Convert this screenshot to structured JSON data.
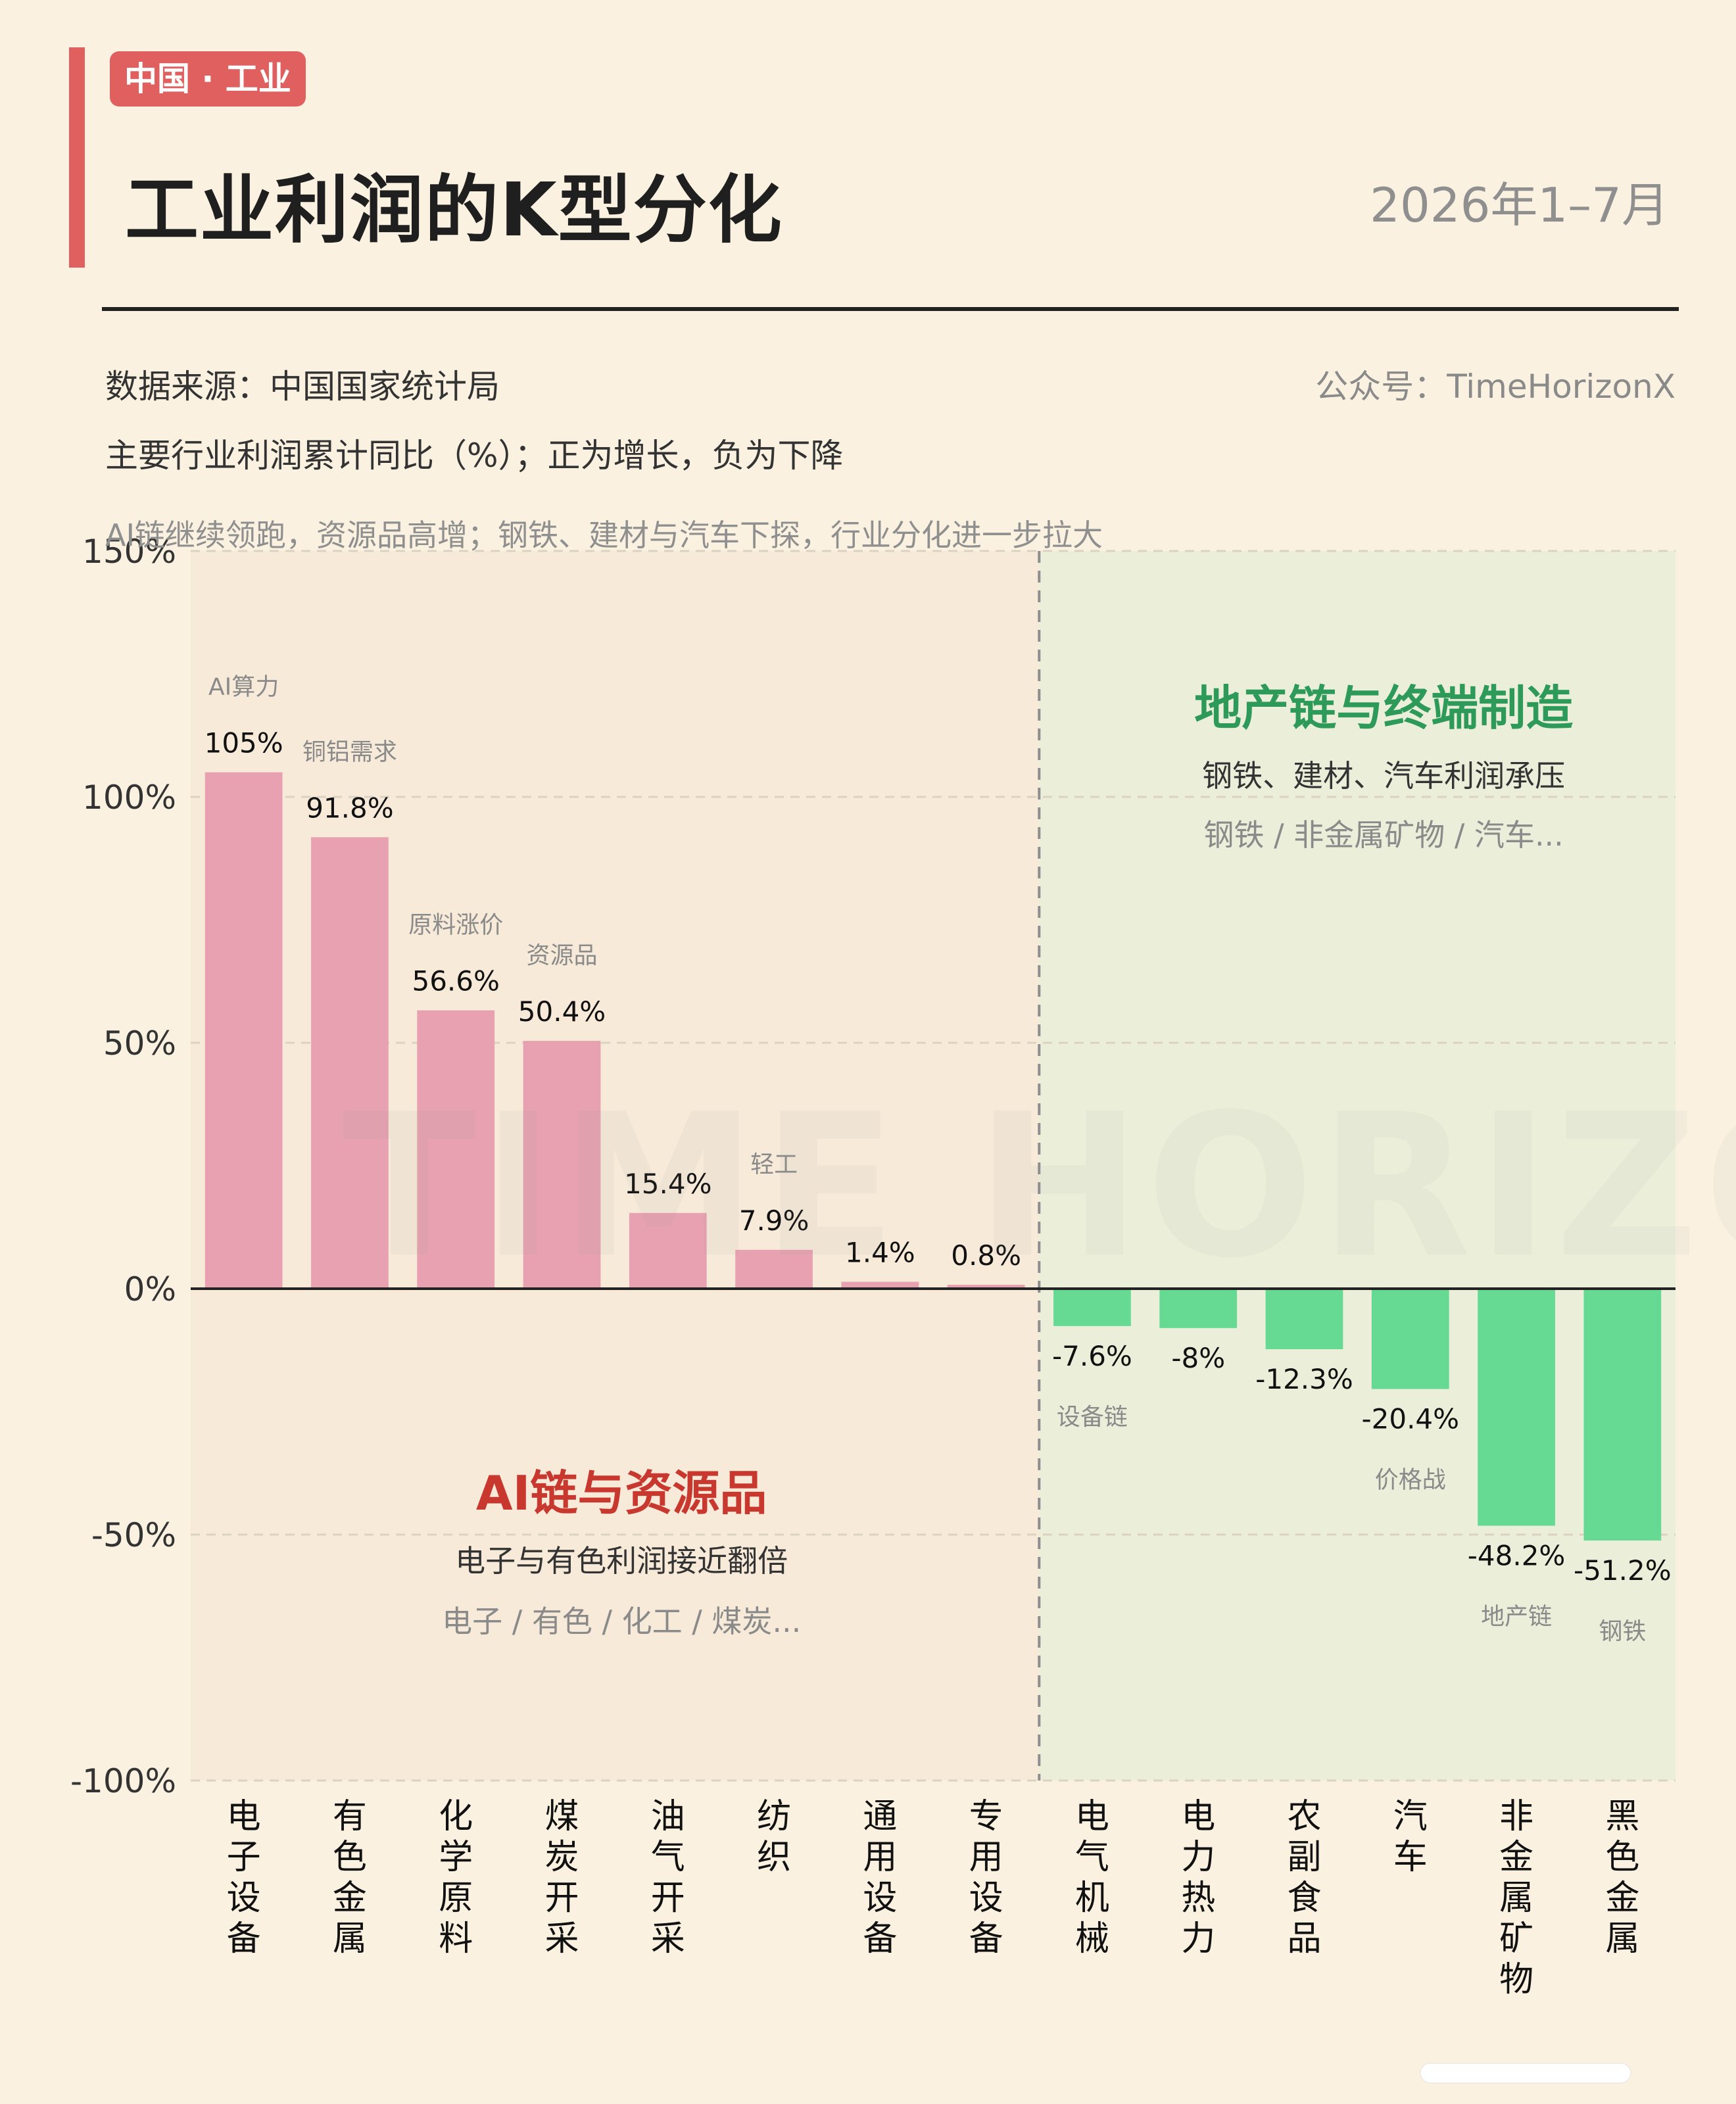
{
  "header": {
    "tag": "中国 · 工业",
    "title": "工业利润的K型分化",
    "date": "2026年1–7月",
    "source": "数据来源：中国国家统计局",
    "account": "公众号：TimeHorizonX",
    "description": "主要行业利润累计同比（%）；正为增长，负为下降",
    "note": "AI链继续领跑，资源品高增；钢铁、建材与汽车下探，行业分化进一步拉大",
    "watermark": "TIME HORIZON"
  },
  "colors": {
    "accent": "#e06060",
    "positive_bar": "#e7a1b0",
    "negative_bar": "#66d993",
    "left_region": "#f7ead9",
    "right_region": "#ebefd9",
    "left_heading": "#c8382f",
    "right_heading": "#2e9a5a"
  },
  "chart_data": {
    "type": "bar",
    "categories": [
      "电子设备",
      "有色金属",
      "化学原料",
      "煤炭开采",
      "油气开采",
      "纺织",
      "通用设备",
      "专用设备",
      "电气机械",
      "电力热力",
      "农副食品",
      "汽车",
      "非金属矿物",
      "黑色金属"
    ],
    "values": [
      105,
      91.8,
      56.6,
      50.4,
      15.4,
      7.9,
      1.4,
      0.8,
      -7.6,
      -8,
      -12.3,
      -20.4,
      -48.2,
      -51.2
    ],
    "value_labels": [
      "105%",
      "91.8%",
      "56.6%",
      "50.4%",
      "15.4%",
      "7.9%",
      "1.4%",
      "0.8%",
      "-7.6%",
      "-8%",
      "-12.3%",
      "-20.4%",
      "-48.2%",
      "-51.2%"
    ],
    "annotations": [
      "AI算力",
      "铜铝需求",
      "原料涨价",
      "资源品",
      "",
      "轻工",
      "",
      "",
      "设备链",
      "",
      "",
      "价格战",
      "地产链",
      "钢铁"
    ],
    "ylim": [
      -100,
      150
    ],
    "yticks": [
      150,
      100,
      50,
      0,
      -50,
      -100
    ],
    "ytick_labels": [
      "150%",
      "100%",
      "50%",
      "0%",
      "-50%",
      "-100%"
    ],
    "grid": true,
    "regions": [
      {
        "heading": "AI链与资源品",
        "subheading": "电子与有色利润接近翻倍",
        "members": "电子 / 有色 / 化工 / 煤炭..."
      },
      {
        "heading": "地产链与终端制造",
        "subheading": "钢铁、建材、汽车利润承压",
        "members": "钢铁 / 非金属矿物 / 汽车..."
      }
    ]
  }
}
